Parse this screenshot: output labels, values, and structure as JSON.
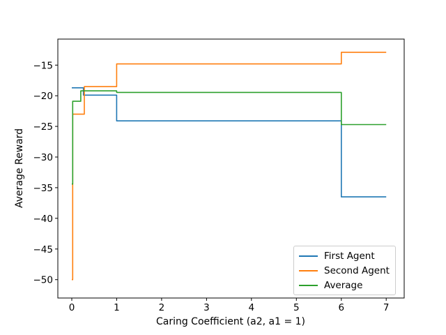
{
  "chart_data": {
    "type": "line",
    "title": "",
    "xlabel": "Caring Coefficient (a2, a1 = 1)",
    "ylabel": "Average Reward",
    "xlim": [
      -0.31,
      7.4
    ],
    "ylim": [
      -53.0,
      -10.75
    ],
    "x_ticks": [
      0,
      1,
      2,
      3,
      4,
      5,
      6,
      7
    ],
    "x_tick_labels": [
      "0",
      "1",
      "2",
      "3",
      "4",
      "5",
      "6",
      "7"
    ],
    "y_ticks": [
      -15,
      -20,
      -25,
      -30,
      -35,
      -40,
      -45,
      -50
    ],
    "y_tick_labels": [
      "−15",
      "−20",
      "−25",
      "−30",
      "−35",
      "−40",
      "−45",
      "−50"
    ],
    "grid": false,
    "step_mode": "post",
    "legend_position": "lower right",
    "series": [
      {
        "name": "First Agent",
        "color": "#1f77b4",
        "points": [
          [
            0,
            -18.7
          ],
          [
            0.26,
            -19.9
          ],
          [
            1,
            -24.1
          ],
          [
            6,
            -36.5
          ],
          [
            7,
            -36.5
          ]
        ]
      },
      {
        "name": "Second Agent",
        "color": "#ff7f0e",
        "points": [
          [
            0,
            -50.0
          ],
          [
            0.02,
            -23.0
          ],
          [
            0.28,
            -18.5
          ],
          [
            1,
            -14.8
          ],
          [
            6,
            -12.9
          ],
          [
            7,
            -12.9
          ]
        ]
      },
      {
        "name": "Average",
        "color": "#2ca02c",
        "points": [
          [
            0,
            -34.4
          ],
          [
            0.02,
            -20.9
          ],
          [
            0.2,
            -19.2
          ],
          [
            1,
            -19.45
          ],
          [
            6,
            -24.7
          ],
          [
            7,
            -24.7
          ]
        ]
      }
    ]
  },
  "colors": {
    "spine": "#000000",
    "text": "#000000",
    "legend_border": "#cccccc",
    "background": "#ffffff"
  }
}
